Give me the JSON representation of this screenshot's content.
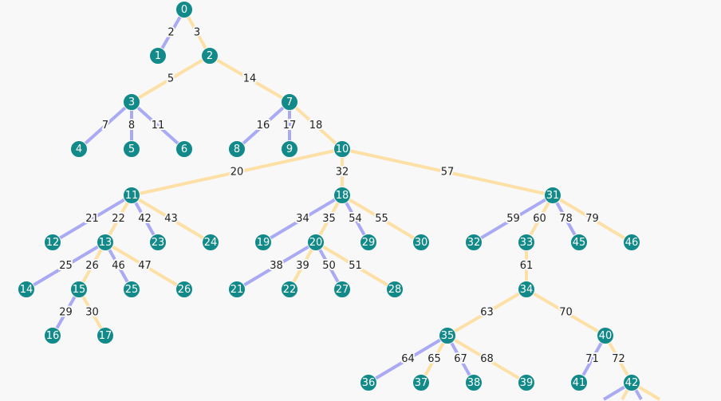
{
  "colors": {
    "background": "#f8f8f8",
    "node": "#128a8a",
    "edge_left": "#aaaaf4",
    "edge_right": "#fde0a6",
    "node_text": "#ffffff",
    "edge_text": "#222222"
  },
  "nodes": [
    "0",
    "1",
    "2",
    "3",
    "4",
    "5",
    "6",
    "7",
    "8",
    "9",
    "10",
    "11",
    "12",
    "13",
    "14",
    "15",
    "16",
    "17",
    "18",
    "19",
    "20",
    "21",
    "22",
    "23",
    "24",
    "25",
    "26",
    "27",
    "28",
    "29",
    "30",
    "31",
    "32",
    "33",
    "34",
    "35",
    "36",
    "37",
    "38",
    "39",
    "40",
    "41",
    "42"
  ],
  "edges": [
    {
      "from": "0",
      "to": "1",
      "label": "2",
      "kind": "left"
    },
    {
      "from": "0",
      "to": "2",
      "label": "3",
      "kind": "right"
    },
    {
      "from": "2",
      "to": "3",
      "label": "5",
      "kind": "right"
    },
    {
      "from": "2",
      "to": "7",
      "label": "14",
      "kind": "right"
    },
    {
      "from": "3",
      "to": "4",
      "label": "7",
      "kind": "left"
    },
    {
      "from": "3",
      "to": "5",
      "label": "8",
      "kind": "left"
    },
    {
      "from": "3",
      "to": "6",
      "label": "11",
      "kind": "left"
    },
    {
      "from": "7",
      "to": "8",
      "label": "16",
      "kind": "left"
    },
    {
      "from": "7",
      "to": "9",
      "label": "17",
      "kind": "left"
    },
    {
      "from": "7",
      "to": "10",
      "label": "18",
      "kind": "right"
    },
    {
      "from": "10",
      "to": "11",
      "label": "20",
      "kind": "right"
    },
    {
      "from": "10",
      "to": "18",
      "label": "32",
      "kind": "right"
    },
    {
      "from": "10",
      "to": "31",
      "label": "57",
      "kind": "right"
    },
    {
      "from": "11",
      "to": "12",
      "label": "21",
      "kind": "left"
    },
    {
      "from": "11",
      "to": "13",
      "label": "22",
      "kind": "right"
    },
    {
      "from": "11",
      "to": "23",
      "label": "42",
      "kind": "left"
    },
    {
      "from": "11",
      "to": "24",
      "label": "43",
      "kind": "right"
    },
    {
      "from": "13",
      "to": "14",
      "label": "25",
      "kind": "left"
    },
    {
      "from": "13",
      "to": "15",
      "label": "26",
      "kind": "right"
    },
    {
      "from": "13",
      "to": "25",
      "label": "46",
      "kind": "left"
    },
    {
      "from": "13",
      "to": "26",
      "label": "47",
      "kind": "right"
    },
    {
      "from": "15",
      "to": "16",
      "label": "29",
      "kind": "left"
    },
    {
      "from": "15",
      "to": "17",
      "label": "30",
      "kind": "right"
    },
    {
      "from": "18",
      "to": "19",
      "label": "34",
      "kind": "left"
    },
    {
      "from": "18",
      "to": "20",
      "label": "35",
      "kind": "right"
    },
    {
      "from": "18",
      "to": "29",
      "label": "54",
      "kind": "left"
    },
    {
      "from": "18",
      "to": "30",
      "label": "55",
      "kind": "right"
    },
    {
      "from": "20",
      "to": "21",
      "label": "38",
      "kind": "left"
    },
    {
      "from": "20",
      "to": "22",
      "label": "39",
      "kind": "right"
    },
    {
      "from": "20",
      "to": "27",
      "label": "50",
      "kind": "left"
    },
    {
      "from": "20",
      "to": "28",
      "label": "51",
      "kind": "right"
    },
    {
      "from": "31",
      "to": "32",
      "label": "59",
      "kind": "left"
    },
    {
      "from": "31",
      "to": "33",
      "label": "60",
      "kind": "right"
    },
    {
      "from": "31",
      "to": "45",
      "label": "78",
      "kind": "left"
    },
    {
      "from": "31",
      "to": "46",
      "label": "79",
      "kind": "right"
    },
    {
      "from": "33",
      "to": "34",
      "label": "61",
      "kind": "right"
    },
    {
      "from": "34",
      "to": "35",
      "label": "63",
      "kind": "right"
    },
    {
      "from": "34",
      "to": "40",
      "label": "70",
      "kind": "right"
    },
    {
      "from": "35",
      "to": "36",
      "label": "64",
      "kind": "left"
    },
    {
      "from": "35",
      "to": "37",
      "label": "65",
      "kind": "right"
    },
    {
      "from": "35",
      "to": "38",
      "label": "67",
      "kind": "left"
    },
    {
      "from": "35",
      "to": "39",
      "label": "68",
      "kind": "right"
    },
    {
      "from": "40",
      "to": "41",
      "label": "71",
      "kind": "left"
    },
    {
      "from": "40",
      "to": "42",
      "label": "72",
      "kind": "right"
    },
    {
      "from": "42",
      "to": "c1",
      "label": "",
      "kind": "left"
    },
    {
      "from": "42",
      "to": "c2",
      "label": "",
      "kind": "right"
    },
    {
      "from": "42",
      "to": "c3",
      "label": "",
      "kind": "left"
    },
    {
      "from": "42",
      "to": "c4",
      "label": "",
      "kind": "right"
    }
  ],
  "extra_nodes_offscreen": [
    "45",
    "46"
  ]
}
